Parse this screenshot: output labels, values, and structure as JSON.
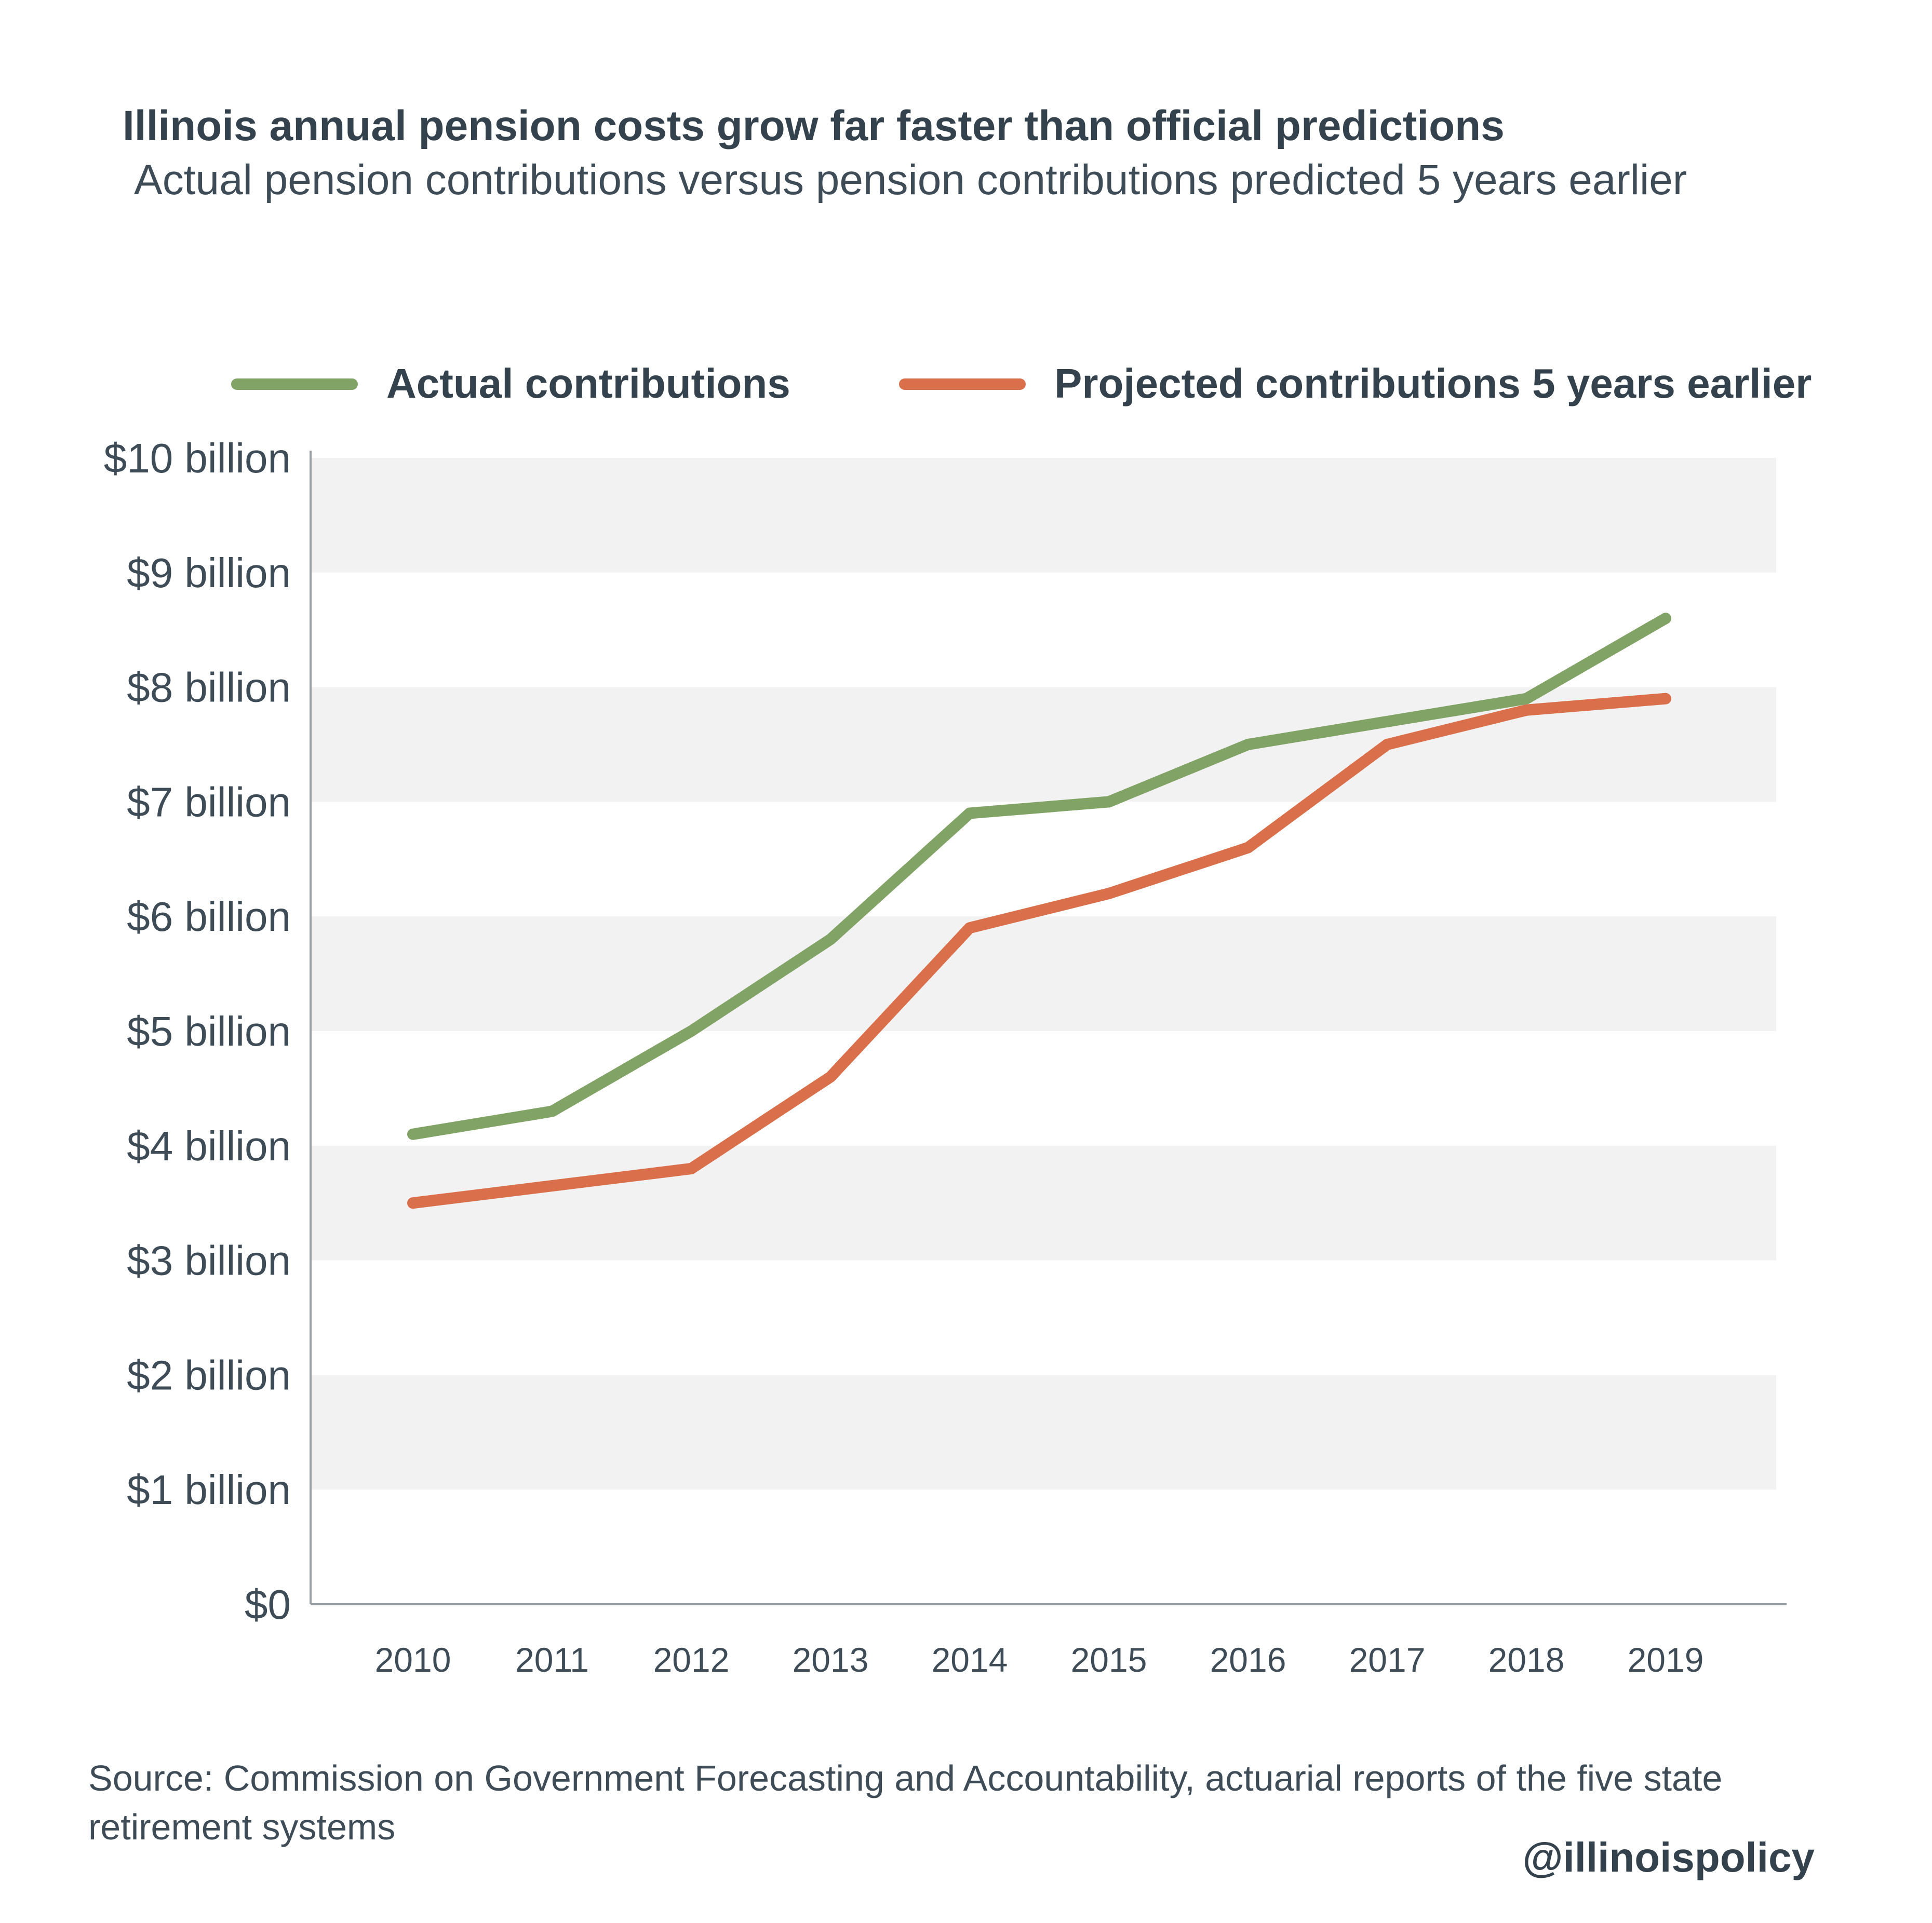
{
  "chart_data": {
    "type": "line",
    "title": "Illinois annual pension costs grow far faster than official predictions",
    "subtitle": "Actual pension contributions versus pension contributions predicted 5 years earlier",
    "categories": [
      "2010",
      "2011",
      "2012",
      "2013",
      "2014",
      "2015",
      "2016",
      "2017",
      "2018",
      "2019"
    ],
    "series": [
      {
        "name": "Actual contributions",
        "color": "#82a366",
        "values": [
          4.1,
          4.3,
          5.0,
          5.8,
          6.9,
          7.0,
          7.5,
          7.7,
          7.9,
          8.6
        ]
      },
      {
        "name": "Projected contributions 5 years earlier",
        "color": "#d9704b",
        "values": [
          3.5,
          3.65,
          3.8,
          4.6,
          5.9,
          6.2,
          6.6,
          7.5,
          7.8,
          7.9
        ]
      }
    ],
    "ylim": [
      0,
      10
    ],
    "y_ticks": [
      {
        "value": 10,
        "label": "$10 billion"
      },
      {
        "value": 9,
        "label": "$9 billion"
      },
      {
        "value": 8,
        "label": "$8 billion"
      },
      {
        "value": 7,
        "label": "$7 billion"
      },
      {
        "value": 6,
        "label": "$6 billion"
      },
      {
        "value": 5,
        "label": "$5 billion"
      },
      {
        "value": 4,
        "label": "$4 billion"
      },
      {
        "value": 3,
        "label": "$3 billion"
      },
      {
        "value": 2,
        "label": "$2 billion"
      },
      {
        "value": 1,
        "label": "$1 billion"
      },
      {
        "value": 0,
        "label": "$0"
      }
    ],
    "legend_position": "top",
    "band_color": "#f2f2f2",
    "axis_color": "#9aa0a6"
  },
  "footer": {
    "source": "Source:  Commission on Government Forecasting and Accountability, actuarial reports of the five state retirement systems",
    "handle": "@illinoispolicy"
  }
}
